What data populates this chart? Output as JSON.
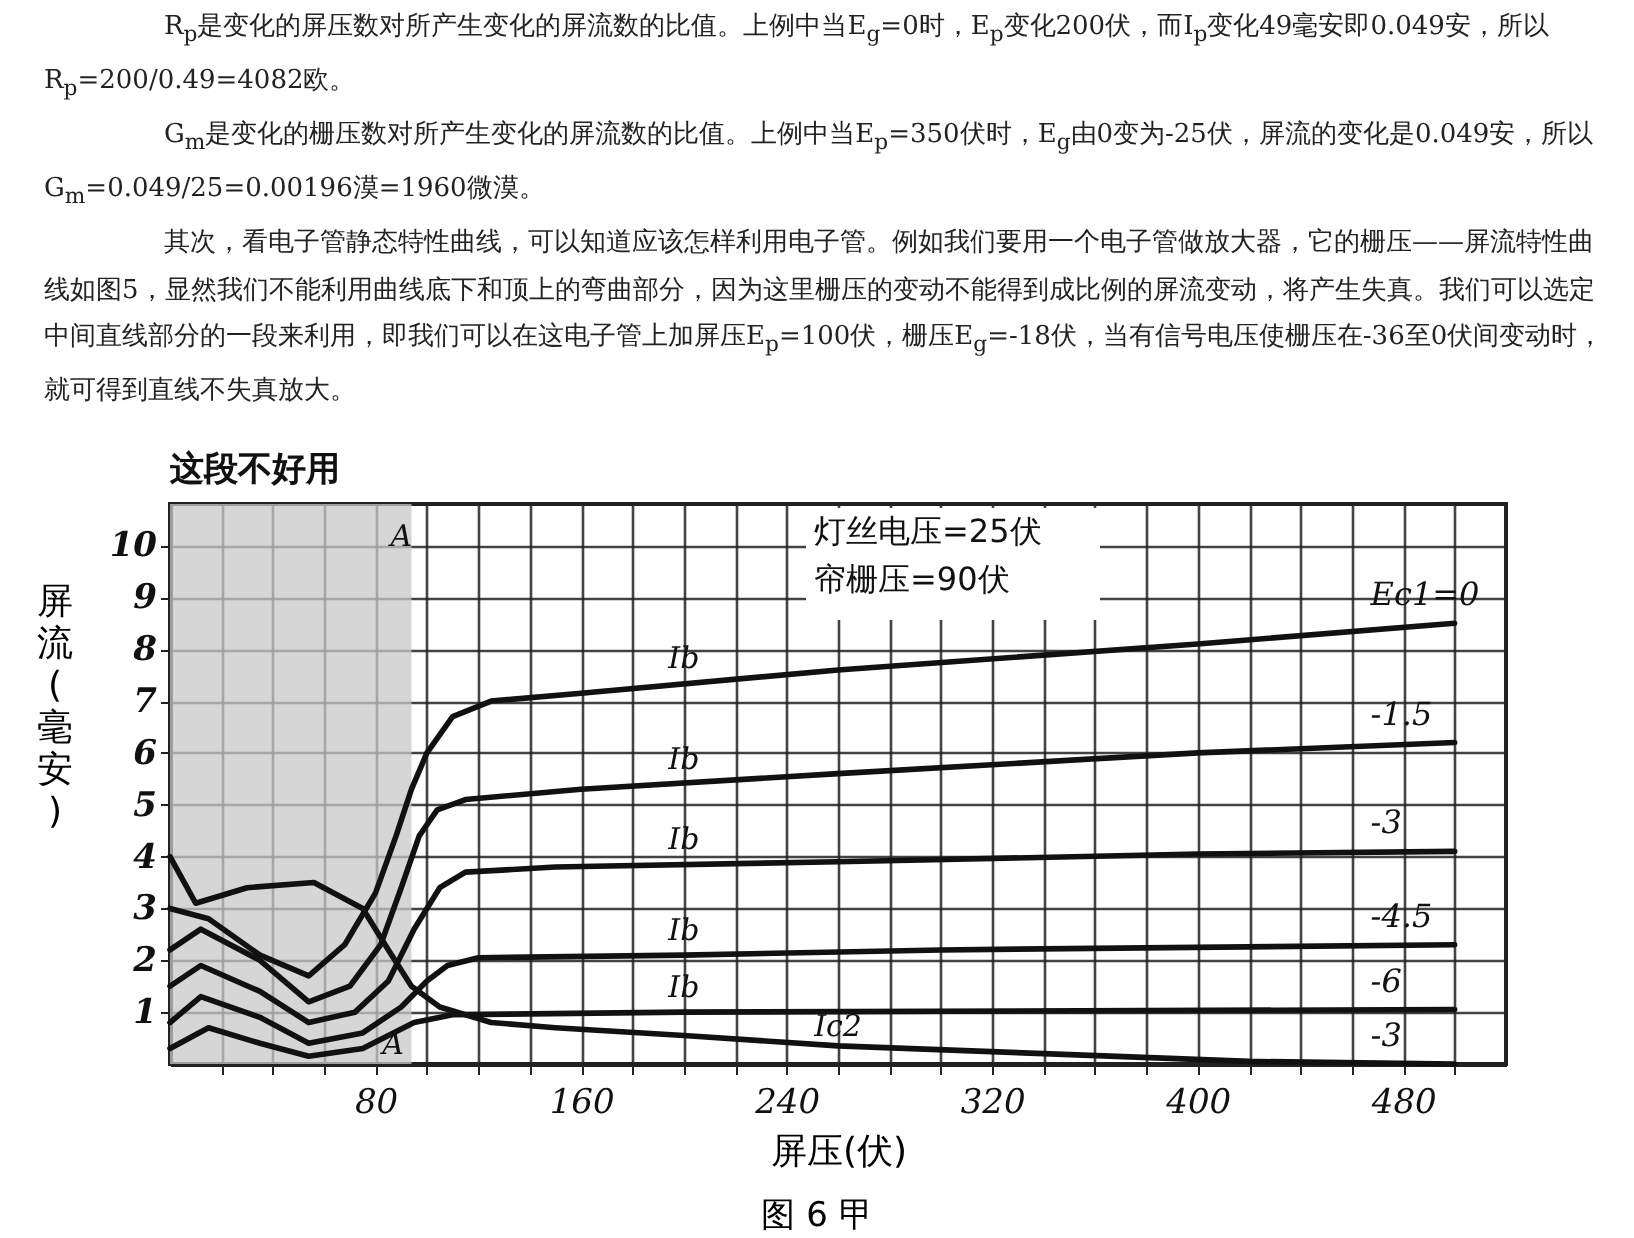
{
  "chart_data": {
    "type": "line",
    "xlabel": "屏压(伏)",
    "ylabel": "屏流(毫安)",
    "xlim": [
      0,
      520
    ],
    "ylim": [
      0,
      10.8
    ],
    "xticks": [
      {
        "value": 20,
        "label": null
      },
      {
        "value": 40,
        "label": null
      },
      {
        "value": 60,
        "label": null
      },
      80,
      {
        "value": 100,
        "label": null
      },
      {
        "value": 120,
        "label": null
      },
      {
        "value": 140,
        "label": null
      },
      160,
      {
        "value": 180,
        "label": null
      },
      {
        "value": 200,
        "label": null
      },
      {
        "value": 220,
        "label": null
      },
      240,
      {
        "value": 260,
        "label": null
      },
      {
        "value": 280,
        "label": null
      },
      {
        "value": 300,
        "label": null
      },
      320,
      {
        "value": 340,
        "label": null
      },
      {
        "value": 360,
        "label": null
      },
      {
        "value": 380,
        "label": null
      },
      400,
      {
        "value": 420,
        "label": null
      },
      {
        "value": 440,
        "label": null
      },
      {
        "value": 460,
        "label": null
      },
      480,
      {
        "value": 500,
        "label": null
      }
    ],
    "yticks": [
      1,
      2,
      3,
      4,
      5,
      6,
      7,
      8,
      9,
      10
    ],
    "grid": true,
    "line_style": "solid",
    "series": [
      {
        "name": "Ec1=0",
        "color": "#111111",
        "x": [
          0,
          15,
          35,
          54,
          68,
          80,
          88,
          94,
          100,
          110,
          125,
          160,
          260,
          400,
          500
        ],
        "values": [
          3.0,
          2.8,
          2.1,
          1.7,
          2.3,
          3.3,
          4.4,
          5.3,
          6.0,
          6.7,
          7.0,
          7.15,
          7.6,
          8.1,
          8.5
        ]
      },
      {
        "name": "-1.5",
        "color": "#111111",
        "x": [
          0,
          12,
          35,
          54,
          70,
          82,
          90,
          97,
          104,
          115,
          160,
          260,
          400,
          500
        ],
        "values": [
          2.2,
          2.6,
          2.0,
          1.2,
          1.5,
          2.3,
          3.4,
          4.4,
          4.9,
          5.1,
          5.3,
          5.6,
          6.0,
          6.2
        ]
      },
      {
        "name": "-3",
        "color": "#111111",
        "x": [
          0,
          12,
          35,
          54,
          72,
          85,
          95,
          105,
          115,
          150,
          260,
          400,
          500
        ],
        "values": [
          1.5,
          1.9,
          1.4,
          0.8,
          1.0,
          1.6,
          2.6,
          3.4,
          3.7,
          3.8,
          3.9,
          4.05,
          4.1
        ]
      },
      {
        "name": "-4.5",
        "color": "#111111",
        "x": [
          0,
          12,
          35,
          54,
          75,
          90,
          100,
          108,
          120,
          200,
          300,
          500
        ],
        "values": [
          0.8,
          1.3,
          0.9,
          0.4,
          0.6,
          1.1,
          1.6,
          1.9,
          2.05,
          2.1,
          2.2,
          2.3
        ]
      },
      {
        "name": "-6",
        "color": "#111111",
        "x": [
          0,
          15,
          35,
          54,
          75,
          95,
          110,
          200,
          500
        ],
        "values": [
          0.3,
          0.7,
          0.4,
          0.15,
          0.3,
          0.8,
          0.95,
          1.0,
          1.05
        ]
      },
      {
        "name": "-3",
        "color": "#111111",
        "x": [
          0,
          10,
          30,
          56,
          75,
          85,
          94,
          105,
          125,
          150,
          200,
          260,
          340,
          420,
          500
        ],
        "values": [
          4.0,
          3.1,
          3.4,
          3.5,
          3.0,
          2.2,
          1.5,
          1.1,
          0.8,
          0.7,
          0.55,
          0.35,
          0.2,
          0.05,
          0.0
        ]
      }
    ],
    "bands": [
      {
        "axis": "x",
        "from": 0,
        "to": 94,
        "label": "这段不好用",
        "color": "#c8c8c8"
      }
    ],
    "annotations": [
      "R$_{p}$是变化的屏压数对所产生变化的屏流数的比值。上例中当E$_{g}$=0时，E$_{p}$变化200伏，而I$_{p}$变化49毫安即0.049安，所以R$_{p}$=200/0.49=4082欧。",
      "G$_{m}$是变化的栅压数对所产生变化的屏流数的比值。上例中当E$_{p}$=350伏时，E$_{g}$由0变为-25伏，屏流的变化是0.049安，所以G$_{m}$=0.049/25=0.00196漠=1960微漠。",
      "其次，看电子管静态特性曲线，可以知道应该怎样利用电子管。例如我们要用一个电子管做放大器，它的栅压——屏流特性曲线如图5，显然我们不能利用曲线底下和顶上的弯曲部分，因为这里栅压的变动不能得到成比例的屏流变动，将产生失真。我们可以选定中间直线部分的一段来利用，即我们可以在这电子管上加屏压E$_{p}$=100伏，栅压E$_{g}$=-18伏，当有信号电压使栅压在-36至0伏间变动时，就可得到直线不失真放大。",
      "灯丝电压=25伏",
      "帘栅压=90伏",
      "图 6 甲",
      {
        "text": "Ib",
        "x": 200,
        "y": 7.45
      },
      {
        "text": "Ib",
        "x": 200,
        "y": 5.5
      },
      {
        "text": "Ib",
        "x": 200,
        "y": 3.95
      },
      {
        "text": "Ib",
        "x": 200,
        "y": 2.2
      },
      {
        "text": "Ib",
        "x": 200,
        "y": 1.1
      },
      {
        "text": "Ic2",
        "x": 260,
        "y": 0.35
      },
      {
        "text": "A",
        "x": 90,
        "y": 9.8
      },
      "A"
    ]
  }
}
